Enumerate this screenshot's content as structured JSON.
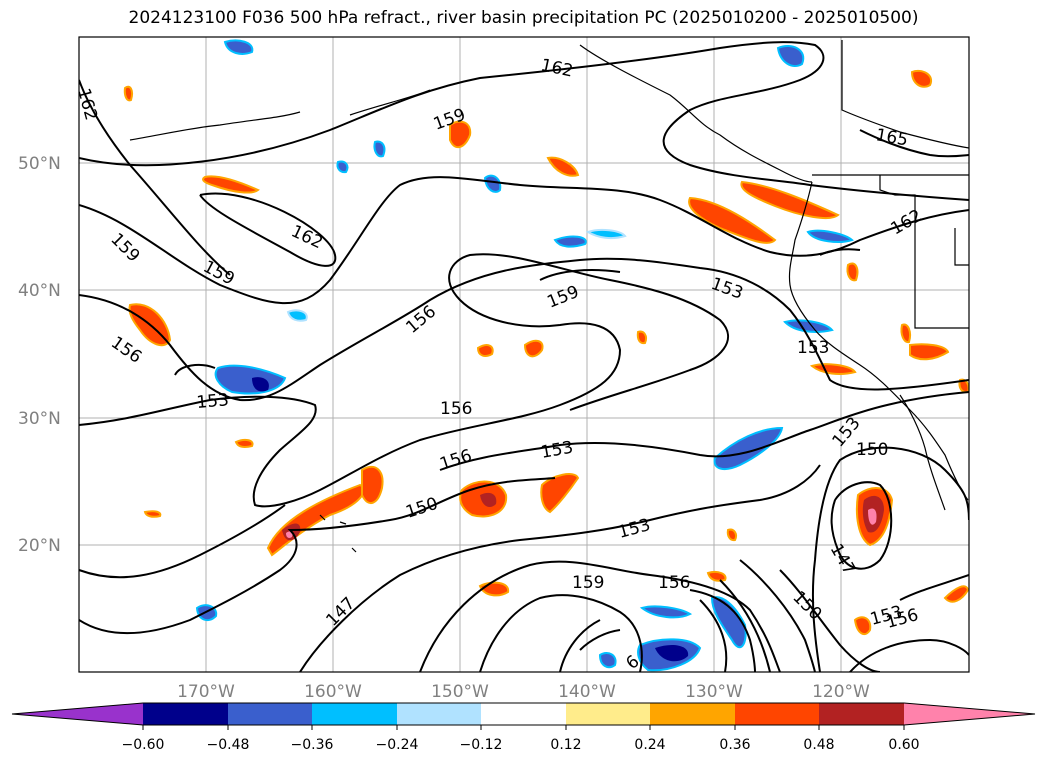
{
  "title": "2024123100 F036 500 hPa refract., river basin precipitation PC (2025010200 - 2025010500)",
  "lat_labels": [
    "50°N",
    "40°N",
    "30°N",
    "20°N"
  ],
  "lon_labels": [
    "170°W",
    "160°W",
    "150°W",
    "140°W",
    "130°W",
    "120°W"
  ],
  "contour_labels": [
    "162",
    "162",
    "159",
    "165",
    "159",
    "162",
    "159",
    "162",
    "156",
    "159",
    "153",
    "156",
    "153",
    "153",
    "156",
    "156",
    "153",
    "153",
    "150",
    "150",
    "153",
    "147",
    "159",
    "156",
    "150",
    "153",
    "156",
    "147",
    "6"
  ],
  "colorbar": {
    "ticks": [
      "−0.60",
      "−0.48",
      "−0.36",
      "−0.24",
      "−0.12",
      "0.12",
      "0.24",
      "0.36",
      "0.48",
      "0.60"
    ],
    "colors": [
      "#9932cc",
      "#00008b",
      "#3a5fcd",
      "#00bfff",
      "#b0e2ff",
      "#ffffff",
      "#ffec8b",
      "#ffa500",
      "#ff4500",
      "#b22222",
      "#ff82ab"
    ]
  }
}
